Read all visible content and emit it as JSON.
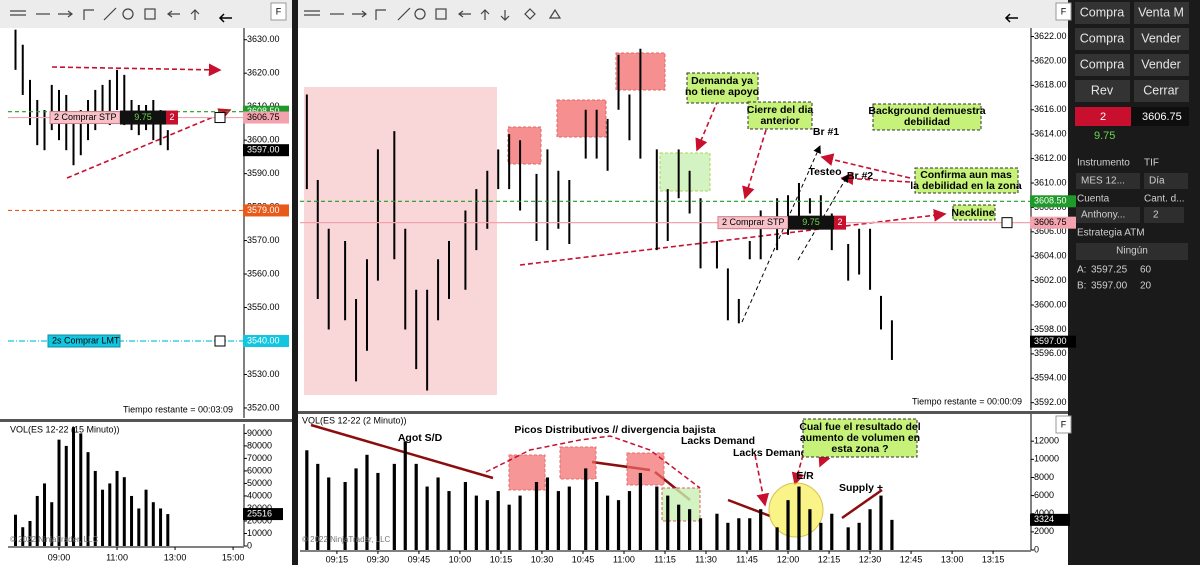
{
  "panel_button": "F",
  "chart_data": [
    {
      "type": "ohlc",
      "x": [
        450,
        465,
        480,
        495,
        510,
        525,
        540,
        555,
        570,
        585,
        600,
        615,
        630,
        645,
        660,
        675,
        690,
        705,
        720,
        735,
        750,
        765
      ],
      "high": [
        3633,
        3628.5,
        3618,
        3612,
        3609,
        3616.5,
        3615,
        3613.5,
        3606,
        3609,
        3612,
        3615,
        3616.5,
        3618,
        3621,
        3619.5,
        3612,
        3610.5,
        3610.5,
        3612,
        3609,
        3603
      ],
      "low": [
        3621,
        3613.5,
        3604.5,
        3598.5,
        3597,
        3603,
        3600,
        3597,
        3592.5,
        3595.5,
        3600,
        3603,
        3606,
        3604.5,
        3609,
        3604.5,
        3603,
        3601.5,
        3603,
        3600,
        3598.5,
        3597
      ],
      "color": "#000000",
      "xlim": [
        434.5,
        920.5
      ],
      "ylim": [
        3517,
        3633.5
      ],
      "yticks": [
        {
          "value": 3520,
          "label": "3520.00"
        },
        {
          "value": 3530,
          "label": "3530.00"
        },
        {
          "value": 3540,
          "label": "3540.00"
        },
        {
          "value": 3550,
          "label": "3550.00"
        },
        {
          "value": 3560,
          "label": "3560.00"
        },
        {
          "value": 3570,
          "label": "3570.00"
        },
        {
          "value": 3580,
          "label": "3580.00"
        },
        {
          "value": 3590,
          "label": "3590.00"
        },
        {
          "value": 3600,
          "label": "3600.00"
        },
        {
          "value": 3610,
          "label": "3610.00"
        },
        {
          "value": 3620,
          "label": "3620.00"
        },
        {
          "value": 3630,
          "label": "3630.00"
        }
      ],
      "levels": [
        {
          "value": 3608.5,
          "label": "3608.50",
          "color": "#1f9a2a"
        },
        {
          "value": 3606.75,
          "label": "3606.75",
          "color": "#f3a3ae"
        },
        {
          "value": 3597,
          "label": "3597.00",
          "color": "#000000"
        },
        {
          "value": 3579,
          "label": "3579.00",
          "color": "#e8591a"
        },
        {
          "value": 3540,
          "label": "3540.00",
          "color": "#13c6e0"
        }
      ],
      "orders": [
        {
          "value": 3606.75,
          "label": "2  Comprar STP",
          "pnl": 9.75,
          "qty": 2
        },
        {
          "value": 3540,
          "label": "2s  Comprar LMT"
        }
      ],
      "annotations": [
        [
          "Tiempo restante = 00:03:09"
        ]
      ]
    },
    {
      "type": "bar",
      "values": [
        25000,
        15000,
        20000,
        40000,
        50000,
        35000,
        85000,
        80000,
        95000,
        90000,
        75000,
        60000,
        45000,
        50000,
        60000,
        55000,
        40000,
        30000,
        45000,
        35000,
        30000,
        25516
      ],
      "color": "#000000",
      "ylim": [
        0,
        97500
      ],
      "yticks": [
        0,
        10000,
        20000,
        30000,
        40000,
        50000,
        60000,
        70000,
        80000,
        90000
      ],
      "xticks": [
        {
          "value": 540,
          "label": "09:00"
        },
        {
          "value": 660,
          "label": "11:00"
        },
        {
          "value": 780,
          "label": "13:00"
        },
        {
          "value": 900,
          "label": "15:00"
        }
      ],
      "annotations": [
        [
          "VOL(ES 12-22 (15 Minuto))"
        ],
        [
          "© 2022 NinjaTrader, LLC"
        ]
      ]
    },
    {
      "type": "ohlc",
      "x": [
        544,
        548,
        552,
        558,
        562,
        566,
        570,
        576,
        580,
        584,
        588,
        592,
        596,
        602,
        606,
        610,
        614,
        618,
        622,
        628,
        632,
        636,
        640,
        646,
        650,
        654,
        658,
        662,
        666,
        672,
        676,
        680,
        684,
        688,
        694,
        698,
        702,
        706,
        710,
        716,
        720,
        724,
        728,
        732,
        736,
        742,
        746,
        750,
        754,
        758
      ],
      "high": [
        3617.25,
        3610.25,
        3606.25,
        3605.25,
        3600.5,
        3603.75,
        3612.75,
        3614.25,
        3606.25,
        3601.25,
        3601.25,
        3603.75,
        3605.25,
        3607.75,
        3609.5,
        3611,
        3612.75,
        3614,
        3613.5,
        3610.75,
        3612.75,
        3611,
        3610.25,
        3616,
        3616,
        3615.25,
        3620.5,
        3617.25,
        3621,
        3612.75,
        3609.5,
        3612.75,
        3611,
        3608.75,
        3605.25,
        3603,
        3600.5,
        3605.25,
        3607.75,
        3608.75,
        3609,
        3610,
        3608.75,
        3609,
        3607.5,
        3605,
        3606.25,
        3606.25,
        3600.75,
        3598.75
      ],
      "low": [
        3609.5,
        3600.5,
        3598,
        3598.75,
        3593.75,
        3596.25,
        3602,
        3603.75,
        3598,
        3594.75,
        3593,
        3598.75,
        3600.5,
        3601.25,
        3604.5,
        3606.25,
        3609.5,
        3609.5,
        3607.75,
        3605.25,
        3604.5,
        3606.25,
        3605,
        3612,
        3612,
        3611,
        3616,
        3613.5,
        3612,
        3604.5,
        3605.25,
        3608.75,
        3607.5,
        3603,
        3603,
        3598.75,
        3598.5,
        3603.75,
        3603.75,
        3604.5,
        3605.75,
        3606.5,
        3607.5,
        3606.25,
        3604.5,
        3602,
        3602.5,
        3601.25,
        3598,
        3595.5
      ],
      "color": "#000000",
      "xlim": [
        541.5,
        808.5
      ],
      "ylim": [
        3591.4,
        3622.7
      ],
      "yticks": [
        {
          "value": 3592,
          "label": "3592.00"
        },
        {
          "value": 3594,
          "label": "3594.00"
        },
        {
          "value": 3596,
          "label": "3596.00"
        },
        {
          "value": 3598,
          "label": "3598.00"
        },
        {
          "value": 3600,
          "label": "3600.00"
        },
        {
          "value": 3602,
          "label": "3602.00"
        },
        {
          "value": 3604,
          "label": "3604.00"
        },
        {
          "value": 3606,
          "label": "3606.00"
        },
        {
          "value": 3608,
          "label": "3608.00"
        },
        {
          "value": 3610,
          "label": "3610.00"
        },
        {
          "value": 3612,
          "label": "3612.00"
        },
        {
          "value": 3614,
          "label": "3614.00"
        },
        {
          "value": 3616,
          "label": "3616.00"
        },
        {
          "value": 3618,
          "label": "3618.00"
        },
        {
          "value": 3620,
          "label": "3620.00"
        },
        {
          "value": 3622,
          "label": "3622.00"
        }
      ],
      "levels": [
        {
          "value": 3608.5,
          "label": "3608.50",
          "color": "#1f9a2a"
        },
        {
          "value": 3606.75,
          "label": "3606.75",
          "color": "#f3a3ae"
        },
        {
          "value": 3597,
          "label": "3597.00",
          "color": "#000000"
        }
      ],
      "orders": [
        {
          "value": 3606.75,
          "label": "2  Comprar STP",
          "pnl": 9.75,
          "qty": 2
        }
      ],
      "annotations": [
        [
          "Demanda ya",
          "no tiene apoyo"
        ],
        [
          "Cierre del dia",
          "anterior"
        ],
        [
          "Background demuestra",
          "debilidad"
        ],
        [
          "Br #1"
        ],
        [
          "Testeo"
        ],
        [
          "Br #2"
        ],
        [
          "Confirma aun mas",
          "la debilidad en la zona"
        ],
        [
          "Neckline"
        ],
        [
          "Tiempo restante = 00:00:09"
        ]
      ]
    },
    {
      "type": "bar",
      "values": [
        11000,
        9500,
        8000,
        7500,
        9000,
        10500,
        8500,
        9500,
        12000,
        9500,
        7000,
        8000,
        6500,
        7500,
        6000,
        5500,
        6500,
        5000,
        6000,
        7500,
        8000,
        6500,
        7000,
        9000,
        7500,
        6000,
        5500,
        6500,
        8500,
        7000,
        6000,
        5000,
        4500,
        3500,
        4000,
        3000,
        3500,
        3500,
        4500,
        2500,
        5500,
        7000,
        4500,
        3000,
        4000,
        2500,
        3000,
        4500,
        6000,
        3324
      ],
      "color": "#000000",
      "ylim": [
        0,
        15000
      ],
      "yticks": [
        0,
        2000,
        4000,
        6000,
        8000,
        10000,
        12000
      ],
      "xticks": [
        {
          "value": 555,
          "label": "09:15"
        },
        {
          "value": 570,
          "label": "09:30"
        },
        {
          "value": 585,
          "label": "09:45"
        },
        {
          "value": 600,
          "label": "10:00"
        },
        {
          "value": 615,
          "label": "10:15"
        },
        {
          "value": 630,
          "label": "10:30"
        },
        {
          "value": 645,
          "label": "10:45"
        },
        {
          "value": 660,
          "label": "11:00"
        },
        {
          "value": 675,
          "label": "11:15"
        },
        {
          "value": 690,
          "label": "11:30"
        },
        {
          "value": 705,
          "label": "11:45"
        },
        {
          "value": 720,
          "label": "12:00"
        },
        {
          "value": 735,
          "label": "12:15"
        },
        {
          "value": 750,
          "label": "12:30"
        },
        {
          "value": 765,
          "label": "12:45"
        },
        {
          "value": 780,
          "label": "13:00"
        },
        {
          "value": 795,
          "label": "13:15"
        }
      ],
      "annotations": [
        [
          "VOL(ES 12-22 (2 Minuto))"
        ],
        [
          "Agot S/D"
        ],
        [
          "Picos Distributivos // divergencia bajista"
        ],
        [
          "Lacks Demand"
        ],
        [
          "Lacks Demand"
        ],
        [
          "Cual fue el resultado del",
          "aumento de volumen en",
          "esta zona ?"
        ],
        [
          "E/R"
        ],
        [
          "Supply +"
        ],
        [
          "© 2022 NinjaTrader, LLC"
        ]
      ]
    }
  ],
  "order_panel": {
    "buttons": [
      "Compra",
      "Venta M",
      "Compra",
      "Vender",
      "Compra",
      "Vender",
      "Rev",
      "Cerrar"
    ],
    "position": {
      "qty": 2,
      "price": 3606.75,
      "pnl": 9.75
    },
    "instrument_label": "Instrumento",
    "instrument": "MES 12...",
    "tif_label": "TIF",
    "tif": "Día",
    "account_label": "Cuenta",
    "account": "Anthony...",
    "quantity_label": "Cant. d...",
    "quantity": 2,
    "atm_label": "Estrategia ATM",
    "atm": "Ningún",
    "quotes": [
      {
        "side": "A:",
        "price": 3597.25,
        "size": 60
      },
      {
        "side": "B:",
        "price": {
          "value": 3597,
          "label": "3597.00"
        },
        "size": 20
      }
    ]
  }
}
